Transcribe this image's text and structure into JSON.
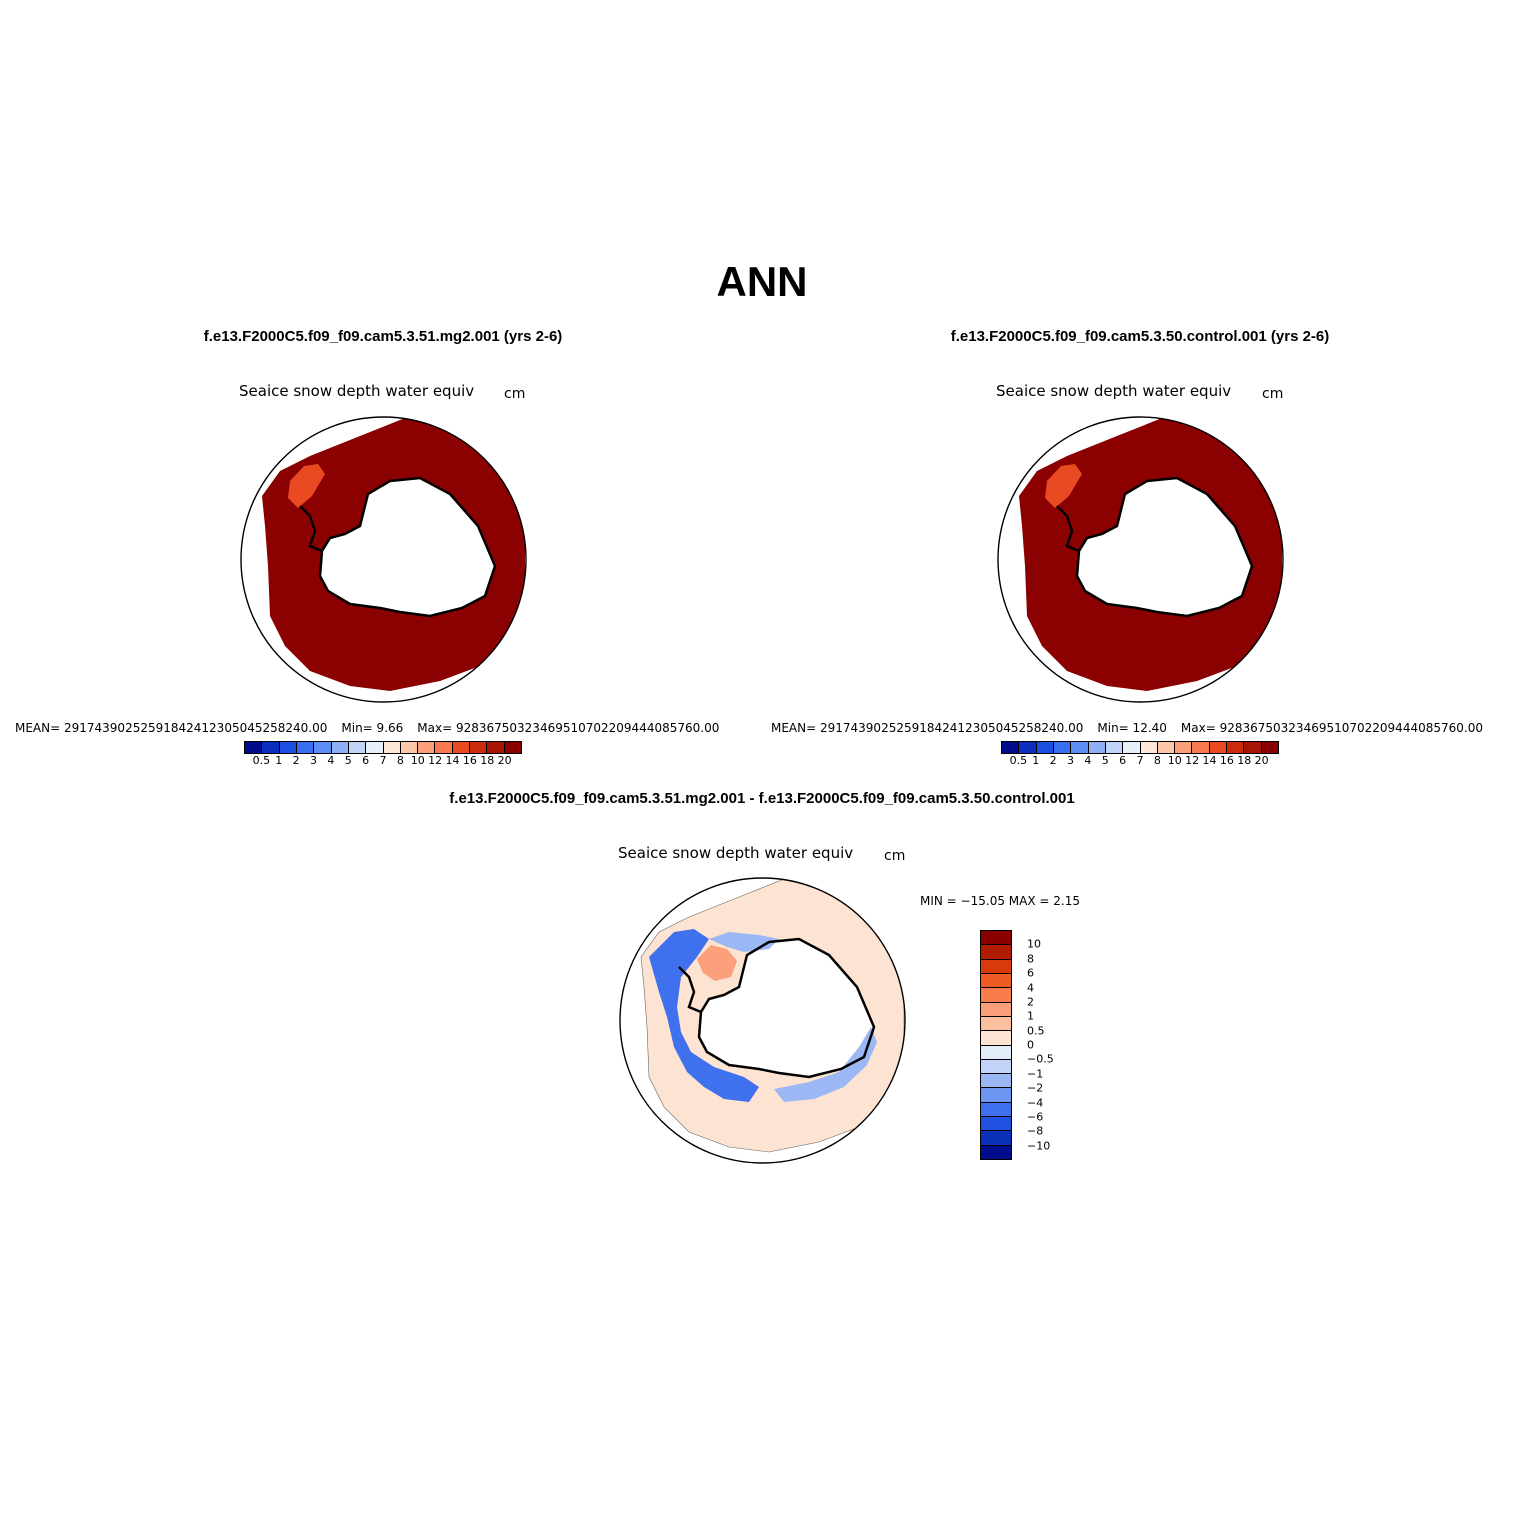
{
  "figure": {
    "title": "ANN"
  },
  "panels": [
    {
      "case": "f.e13.F2000C5.f09_f09.cam5.3.51.mg2.001 (yrs 2-6)",
      "variable": "Seaice snow depth water equiv",
      "units": "cm",
      "stats": {
        "mean_label": "MEAN= 29174390252591842412305045258240.00",
        "min_label": "Min=     9.66",
        "max_label": "Max= 92836750323469510702209444085760.00"
      }
    },
    {
      "case": "f.e13.F2000C5.f09_f09.cam5.3.50.control.001 (yrs 2-6)",
      "variable": "Seaice snow depth water equiv",
      "units": "cm",
      "stats": {
        "mean_label": "MEAN= 29174390252591842412305045258240.00",
        "min_label": "Min=    12.40",
        "max_label": "Max= 92836750323469510702209444085760.00"
      }
    }
  ],
  "difference": {
    "case": "f.e13.F2000C5.f09_f09.cam5.3.51.mg2.001 - f.e13.F2000C5.f09_f09.cam5.3.50.control.001",
    "variable": "Seaice snow depth water equiv",
    "units": "cm",
    "minmax_label": "MIN = −15.05 MAX =    2.15"
  },
  "colorbar_abs": {
    "levels": [
      "0.5",
      "1",
      "2",
      "3",
      "4",
      "5",
      "6",
      "7",
      "8",
      "10",
      "12",
      "14",
      "16",
      "18",
      "20"
    ],
    "colors": [
      "#000c8c",
      "#0a2fbe",
      "#1a4fe0",
      "#3a6ef0",
      "#5d8ef5",
      "#8fb0f5",
      "#c1d4f7",
      "#e8f0fb",
      "#fde8d8",
      "#fcc8a8",
      "#fba07a",
      "#f87850",
      "#ea4a22",
      "#cc2a08",
      "#a81404",
      "#8a0000"
    ]
  },
  "colorbar_diff": {
    "levels": [
      "10",
      "8",
      "6",
      "4",
      "2",
      "1",
      "0.5",
      "0",
      "−0.5",
      "−1",
      "−2",
      "−4",
      "−6",
      "−8",
      "−10"
    ],
    "colors": [
      "#8a0000",
      "#b01c04",
      "#d83a0c",
      "#f05a24",
      "#f87c4c",
      "#fba07a",
      "#fcc0a0",
      "#fde4d2",
      "#e4eefb",
      "#c1d4f7",
      "#9bb8f5",
      "#6d96f2",
      "#3f70ee",
      "#2050e0",
      "#0b30b8",
      "#000c8c"
    ]
  },
  "map_colors": {
    "field_abs": "#8b0000",
    "field_abs_low": "#ea4a22",
    "field_diff_bg": "#fde4d2",
    "field_diff_neg": "#3f70ee",
    "field_diff_neg_light": "#9bb8f5",
    "field_diff_pos": "#fba07a",
    "land": "#ffffff",
    "coast": "#000000"
  }
}
